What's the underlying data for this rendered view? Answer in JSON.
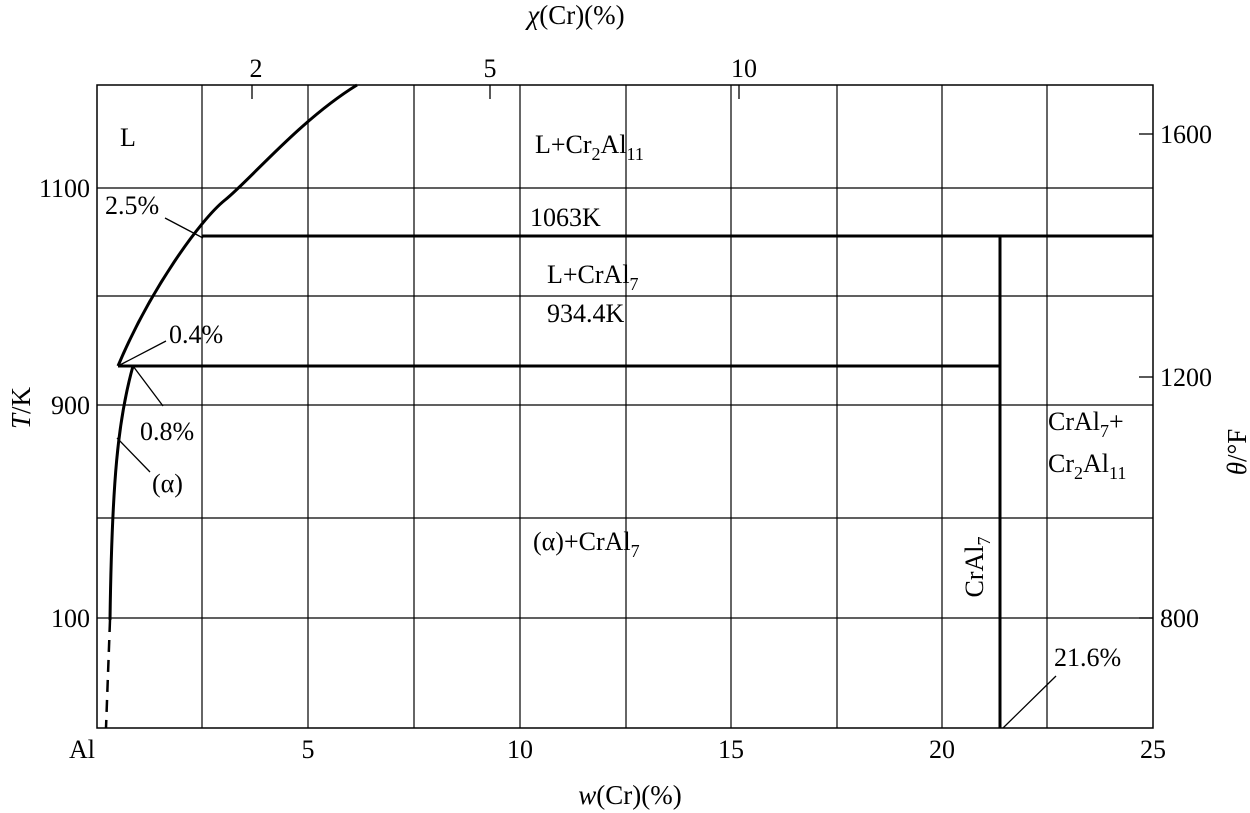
{
  "axes": {
    "bottom": {
      "title_symbol": "w",
      "title_rest": "(Cr)(%)",
      "origin_label": "Al",
      "ticks": [
        "5",
        "10",
        "15",
        "20",
        "25"
      ]
    },
    "top": {
      "title_symbol": "χ",
      "title_rest": "(Cr)(%)",
      "ticks": [
        "2",
        "5",
        "10"
      ]
    },
    "left": {
      "title_symbol": "T",
      "title_rest": "/K",
      "ticks": [
        "1100",
        "900",
        "100"
      ]
    },
    "right": {
      "title_symbol": "θ",
      "title_rest": "/°F",
      "ticks": [
        "1600",
        "1200",
        "800"
      ]
    }
  },
  "regions": {
    "liquid": "L",
    "l_cr2al11": {
      "main": "L+Cr",
      "sub1": "2",
      "mid": "Al",
      "sub2": "11"
    },
    "l_cral7": {
      "main": "L+CrAl",
      "sub": "7"
    },
    "alpha": "(α)",
    "alpha_cral7": {
      "main": "(α)+CrAl",
      "sub": "7"
    },
    "cral7_cr2al11": {
      "line1_main": "CrAl",
      "line1_sub": "7",
      "line1_tail": "+",
      "line2_main": "Cr",
      "line2_sub1": "2",
      "line2_mid": "Al",
      "line2_sub2": "11"
    },
    "cral7_vertical": {
      "main": "CrAl",
      "sub": "7"
    }
  },
  "annotations": {
    "peritectic_1_temp": "1063K",
    "peritectic_2_temp": "934.4K",
    "liquidus_comp_1": "2.5%",
    "liquidus_comp_2": "0.4%",
    "solvus_comp": "0.8%",
    "compound_comp": "21.6%"
  }
}
